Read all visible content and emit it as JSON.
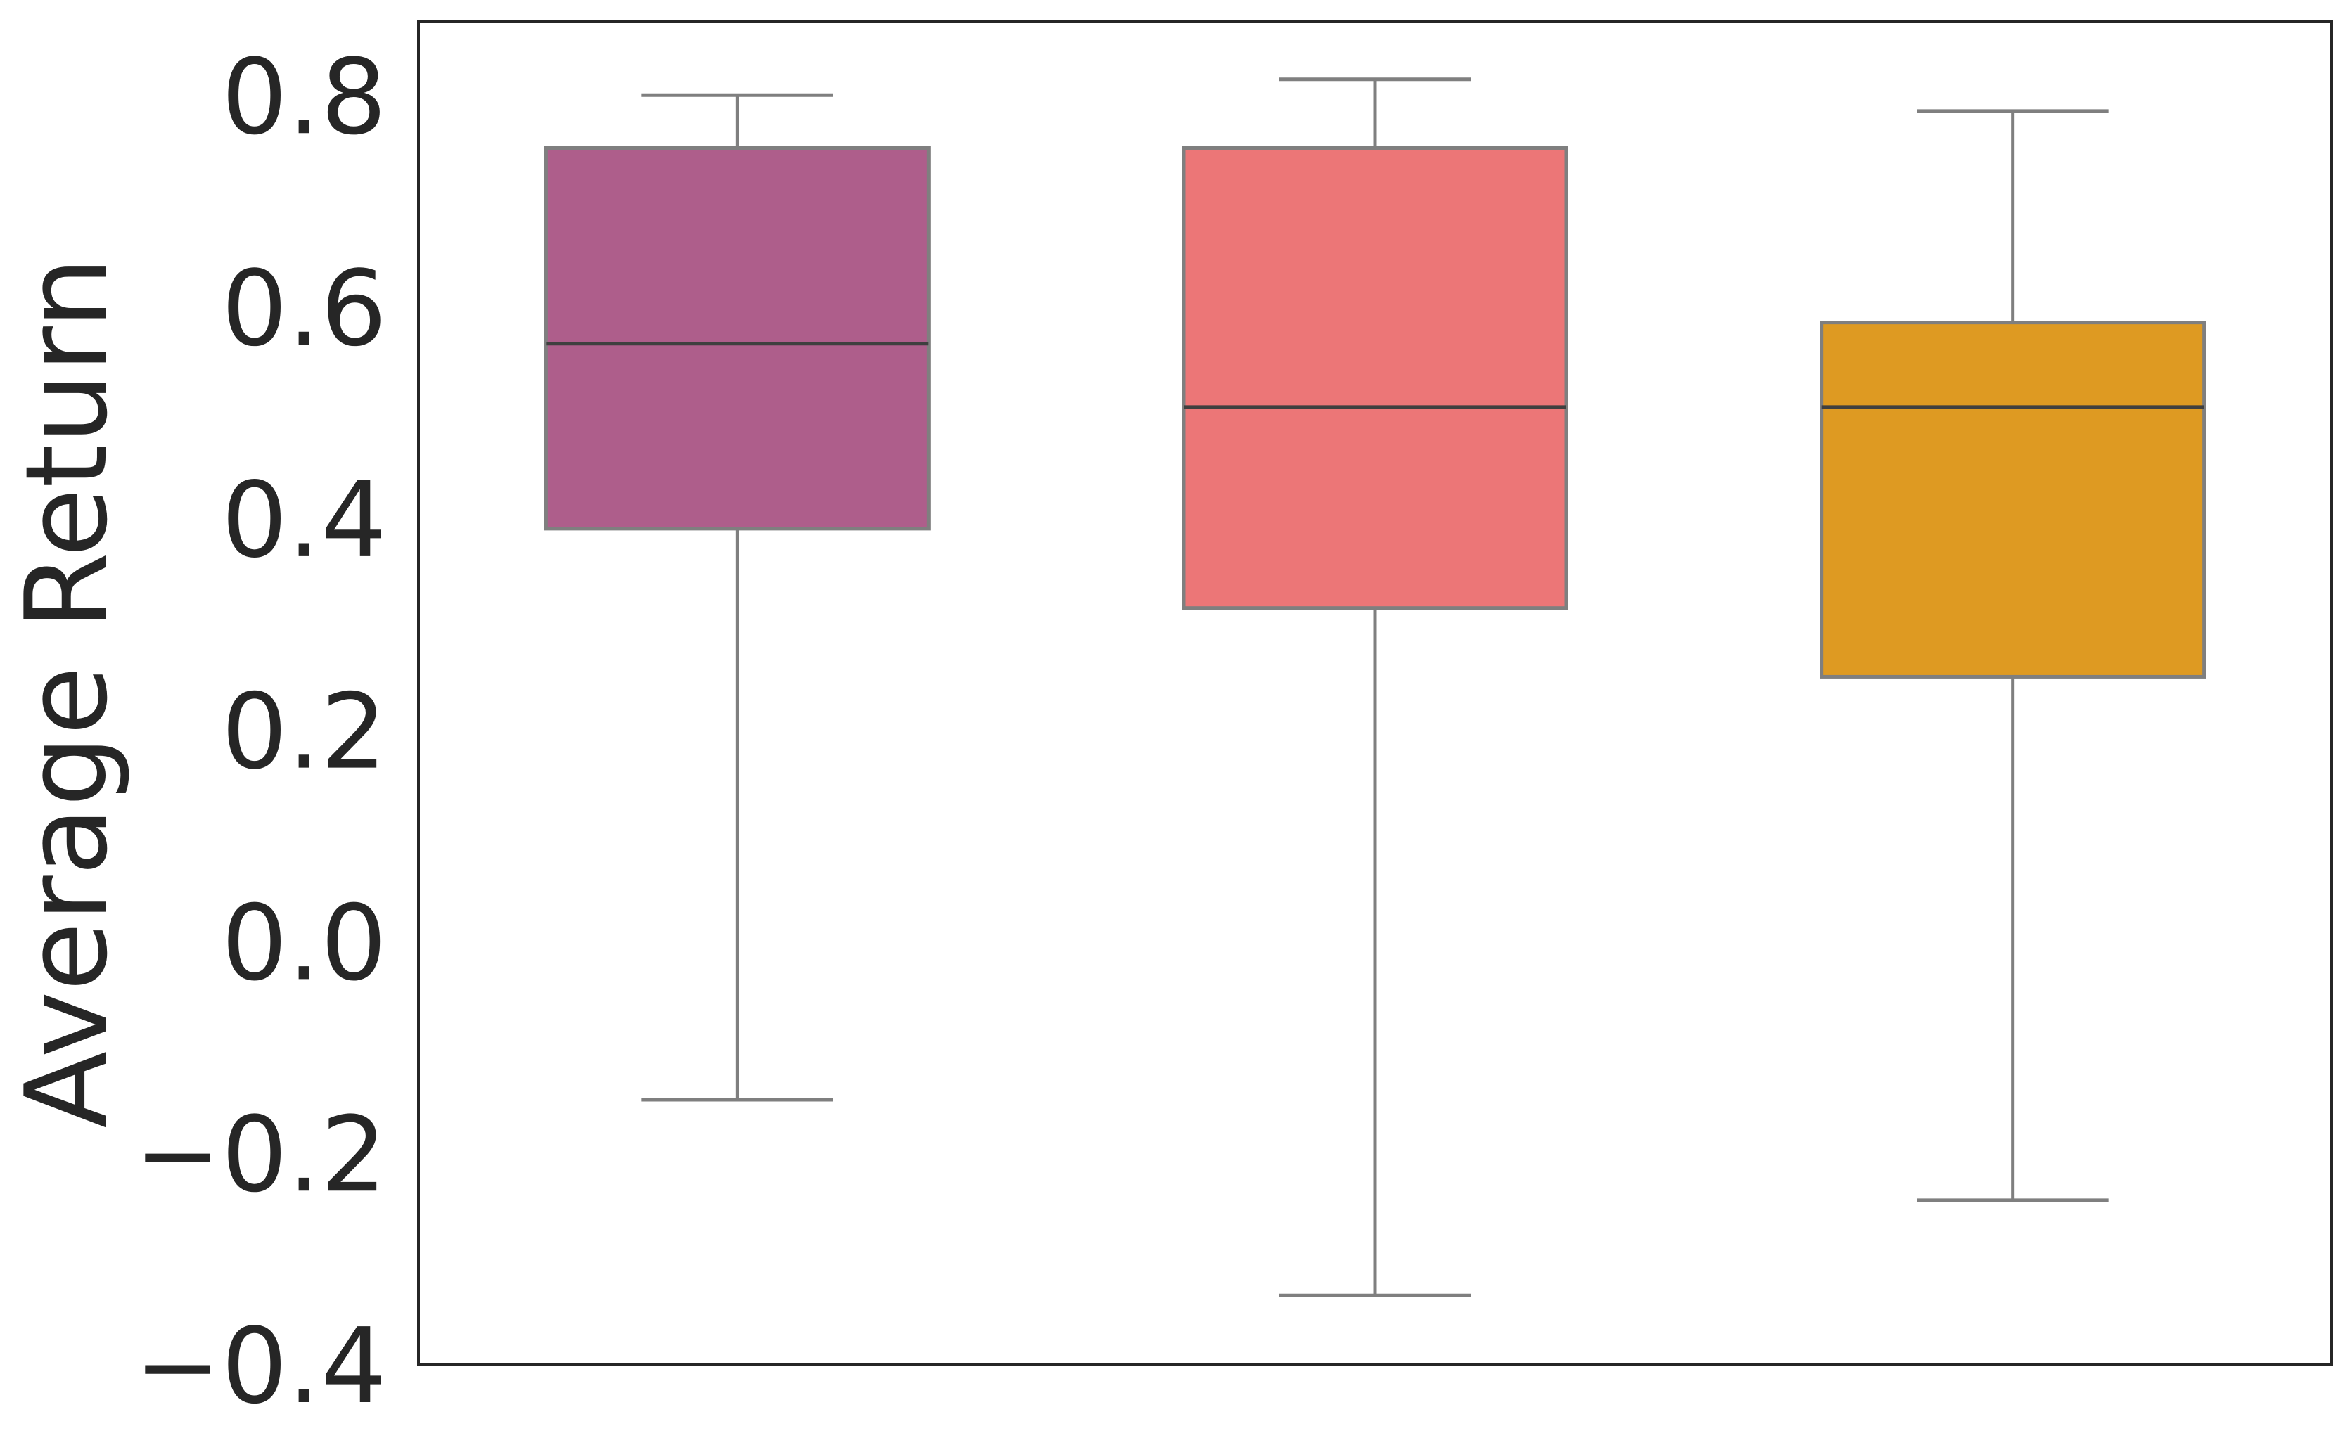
{
  "chart_data": {
    "type": "box",
    "ylabel": "Average Return",
    "ylim": [
      -0.4,
      0.87
    ],
    "yticks": [
      {
        "value": 0.8,
        "label": "0.8"
      },
      {
        "value": 0.6,
        "label": "0.6"
      },
      {
        "value": 0.4,
        "label": "0.4"
      },
      {
        "value": 0.2,
        "label": "0.2"
      },
      {
        "value": 0.0,
        "label": "0.0"
      },
      {
        "value": -0.2,
        "label": "−0.2"
      },
      {
        "value": -0.4,
        "label": "−0.4"
      }
    ],
    "grid": false,
    "boxes": [
      {
        "whisker_low": -0.15,
        "q1": 0.39,
        "median": 0.565,
        "q3": 0.75,
        "whisker_high": 0.8,
        "color": "#ae5e8b"
      },
      {
        "whisker_low": -0.335,
        "q1": 0.315,
        "median": 0.505,
        "q3": 0.75,
        "whisker_high": 0.815,
        "color": "#ec7677"
      },
      {
        "whisker_low": -0.245,
        "q1": 0.25,
        "median": 0.505,
        "q3": 0.585,
        "whisker_high": 0.785,
        "color": "#de9a22"
      }
    ],
    "colors": {
      "box_edge": "#7f7f7f",
      "median": "#3f3f3f",
      "frame": "#262626",
      "text": "#262626"
    }
  }
}
